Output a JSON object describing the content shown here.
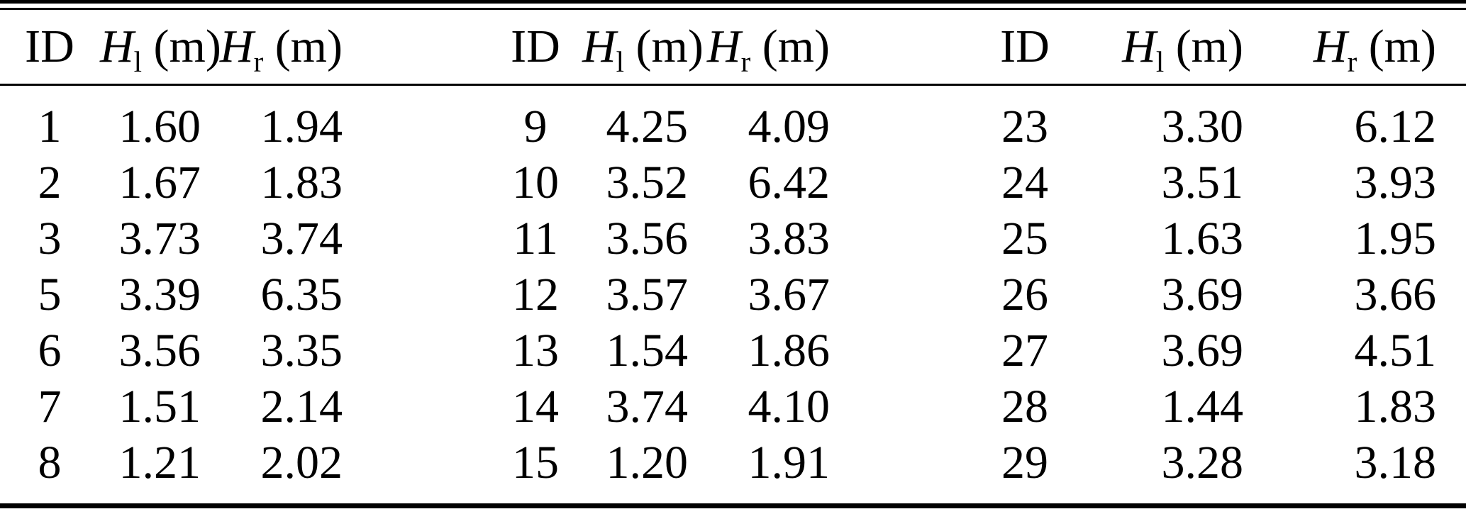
{
  "table": {
    "header": {
      "id_label": "ID",
      "h_symbol": "H",
      "sub_left": "l",
      "sub_right": "r",
      "unit": " (m)"
    },
    "groups": [
      {
        "rows": [
          {
            "id": "1",
            "hl": "1.60",
            "hr": "1.94"
          },
          {
            "id": "2",
            "hl": "1.67",
            "hr": "1.83"
          },
          {
            "id": "3",
            "hl": "3.73",
            "hr": "3.74"
          },
          {
            "id": "5",
            "hl": "3.39",
            "hr": "6.35"
          },
          {
            "id": "6",
            "hl": "3.56",
            "hr": "3.35"
          },
          {
            "id": "7",
            "hl": "1.51",
            "hr": "2.14"
          },
          {
            "id": "8",
            "hl": "1.21",
            "hr": "2.02"
          }
        ]
      },
      {
        "rows": [
          {
            "id": "9",
            "hl": "4.25",
            "hr": "4.09"
          },
          {
            "id": "10",
            "hl": "3.52",
            "hr": "6.42"
          },
          {
            "id": "11",
            "hl": "3.56",
            "hr": "3.83"
          },
          {
            "id": "12",
            "hl": "3.57",
            "hr": "3.67"
          },
          {
            "id": "13",
            "hl": "1.54",
            "hr": "1.86"
          },
          {
            "id": "14",
            "hl": "3.74",
            "hr": "4.10"
          },
          {
            "id": "15",
            "hl": "1.20",
            "hr": "1.91"
          }
        ]
      },
      {
        "rows": [
          {
            "id": "23",
            "hl": "3.30",
            "hr": "6.12"
          },
          {
            "id": "24",
            "hl": "3.51",
            "hr": "3.93"
          },
          {
            "id": "25",
            "hl": "1.63",
            "hr": "1.95"
          },
          {
            "id": "26",
            "hl": "3.69",
            "hr": "3.66"
          },
          {
            "id": "27",
            "hl": "3.69",
            "hr": "4.51"
          },
          {
            "id": "28",
            "hl": "1.44",
            "hr": "1.83"
          },
          {
            "id": "29",
            "hl": "3.28",
            "hr": "3.18"
          }
        ]
      }
    ]
  }
}
